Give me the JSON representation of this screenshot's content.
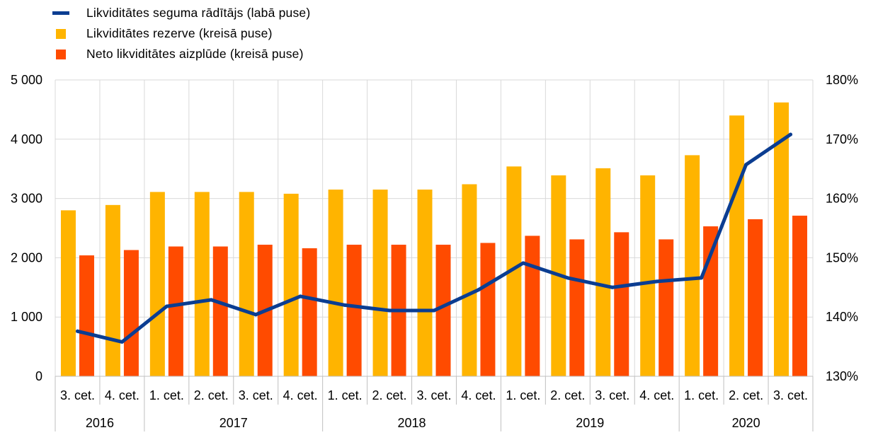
{
  "colors": {
    "ratio": "#0b3d91",
    "reserve": "#ffb400",
    "outflow": "#ff4b00",
    "grid": "#d9d9d9"
  },
  "legend": {
    "ratio_label": "Likviditātes seguma rādītājs (labā puse)",
    "reserve_label": "Likviditātes rezerve (kreisā puse)",
    "outflow_label": "Neto likviditātes aizplūde (kreisā puse)"
  },
  "chart_data": {
    "type": "bar",
    "title": "",
    "categories": [
      "3. cet.",
      "4. cet.",
      "1. cet.",
      "2. cet.",
      "3. cet.",
      "4. cet.",
      "1. cet.",
      "2. cet.",
      "3. cet.",
      "4. cet.",
      "1. cet.",
      "2. cet.",
      "3. cet.",
      "4. cet.",
      "1. cet.",
      "2. cet.",
      "3. cet."
    ],
    "year_groups": [
      {
        "label": "2016",
        "count": 2
      },
      {
        "label": "2017",
        "count": 4
      },
      {
        "label": "2018",
        "count": 4
      },
      {
        "label": "2019",
        "count": 4
      },
      {
        "label": "2020",
        "count": 3
      }
    ],
    "series": [
      {
        "name": "Likviditātes rezerve (kreisā puse)",
        "type": "bar",
        "axis": "left",
        "values": [
          2800,
          2890,
          3110,
          3110,
          3110,
          3080,
          3150,
          3150,
          3150,
          3240,
          3540,
          3390,
          3510,
          3390,
          3730,
          4400,
          4620
        ]
      },
      {
        "name": "Neto likviditātes aizplūde (kreisā puse)",
        "type": "bar",
        "axis": "left",
        "values": [
          2040,
          2130,
          2190,
          2190,
          2220,
          2160,
          2220,
          2220,
          2220,
          2250,
          2370,
          2310,
          2430,
          2310,
          2530,
          2650,
          2710
        ]
      },
      {
        "name": "Likviditātes seguma rādītājs (labā puse)",
        "type": "line",
        "axis": "right",
        "values": [
          137.6,
          135.8,
          141.8,
          142.9,
          140.4,
          143.5,
          142.0,
          141.1,
          141.1,
          144.6,
          149.1,
          146.6,
          145.0,
          146.0,
          146.6,
          165.7,
          170.8
        ]
      }
    ],
    "left_axis": {
      "ylim": [
        0,
        5000
      ],
      "ticks": [
        "0",
        "1 000",
        "2 000",
        "3 000",
        "4 000",
        "5 000"
      ]
    },
    "right_axis": {
      "ylim": [
        130,
        180
      ],
      "ticks": [
        "130%",
        "140%",
        "150%",
        "160%",
        "170%",
        "180%"
      ]
    },
    "grid": true,
    "legend_position": "top-left"
  }
}
